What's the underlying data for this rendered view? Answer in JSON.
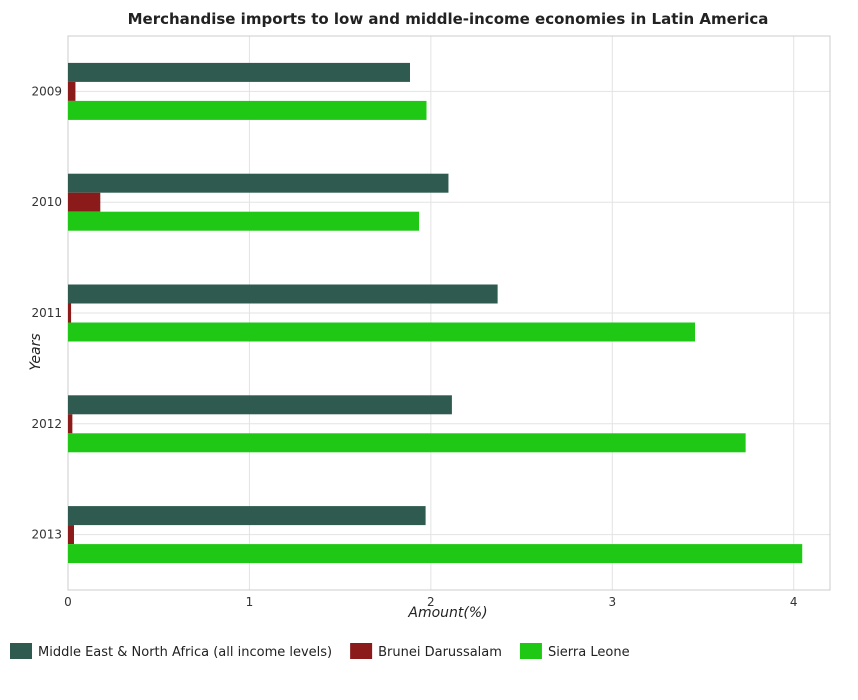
{
  "chart_data": {
    "type": "bar",
    "orientation": "horizontal",
    "title": "Merchandise imports to low and middle-income economies in Latin America",
    "xlabel": "Amount(%)",
    "ylabel": "Years",
    "categories": [
      "2009",
      "2010",
      "2011",
      "2012",
      "2013"
    ],
    "series": [
      {
        "name": "Middle East & North Africa (all income levels)",
        "color": "#2e5a4f",
        "values": [
          1.885,
          2.097,
          2.368,
          2.116,
          1.971
        ]
      },
      {
        "name": "Brunei Darussalam",
        "color": "#8b1a1a",
        "values": [
          0.041,
          0.178,
          0.017,
          0.024,
          0.033
        ]
      },
      {
        "name": "Sierra Leone",
        "color": "#1ec814",
        "values": [
          1.976,
          1.935,
          3.456,
          3.735,
          4.047
        ]
      }
    ],
    "xlim": [
      0,
      4.2
    ],
    "xticks": [
      "0",
      "1",
      "2",
      "3",
      "4"
    ],
    "grid": true,
    "legend_position": "bottom"
  }
}
